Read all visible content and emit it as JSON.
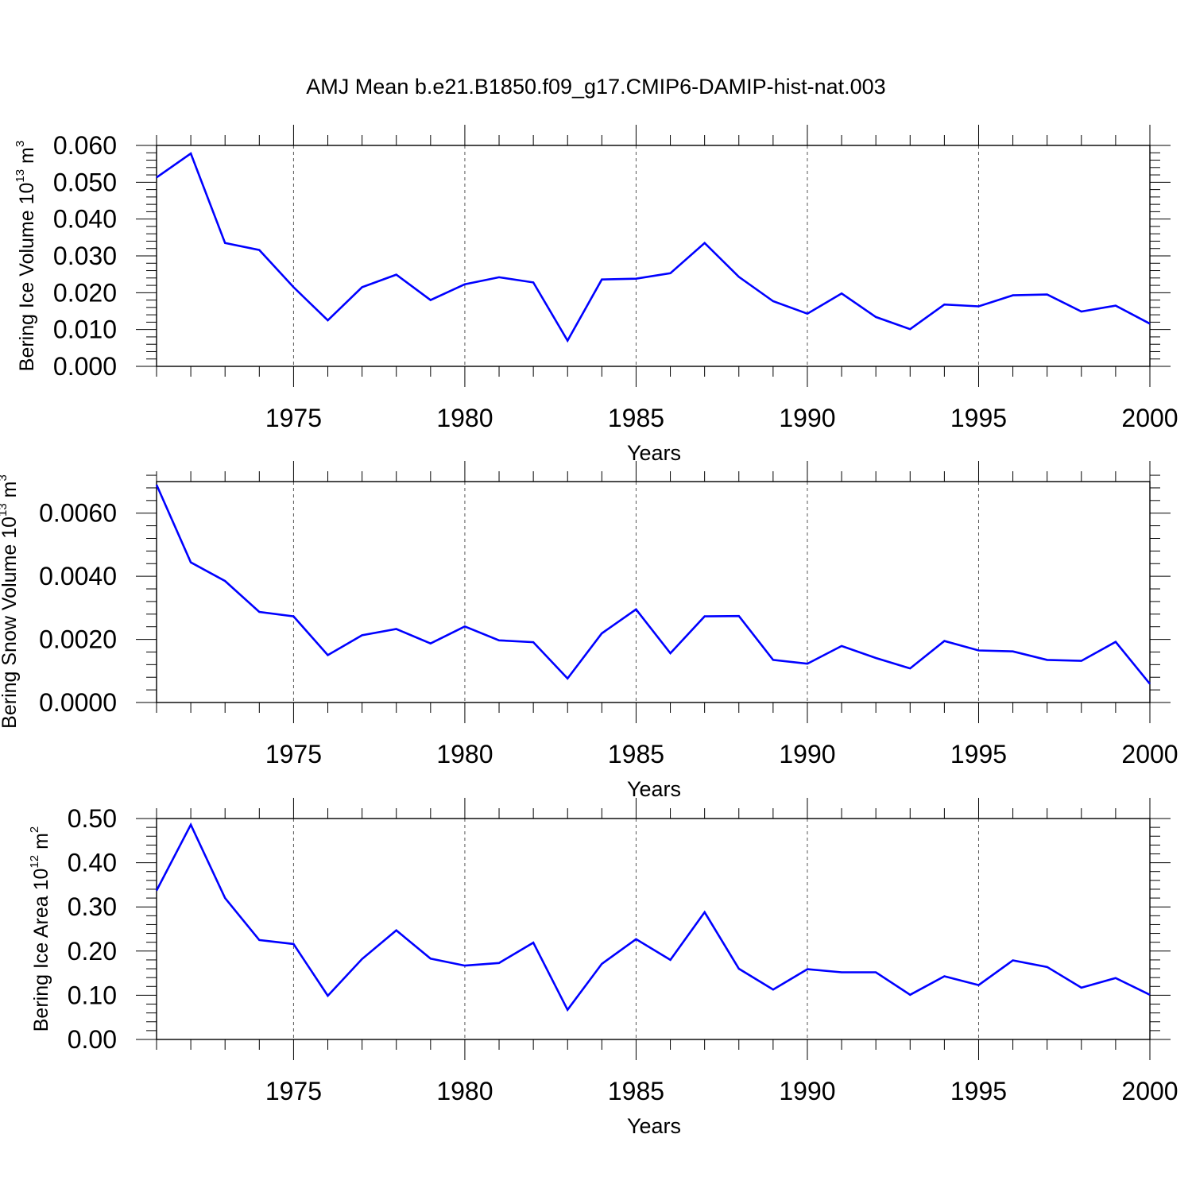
{
  "title": "AMJ Mean b.e21.B1850.f09_g17.CMIP6-DAMIP-hist-nat.003",
  "chart_data": [
    {
      "type": "line",
      "ylabel_main": "Bering Ice Volume 10",
      "ylabel_exp": "13",
      "ylabel_unit": " m",
      "ylabel_unit_exp": "3",
      "xlabel": "Years",
      "xlim": [
        1971,
        2000
      ],
      "ylim": [
        0,
        0.06
      ],
      "yticks": [
        0,
        0.01,
        0.02,
        0.03,
        0.04,
        0.05,
        0.06
      ],
      "ytick_labels": [
        "0.000",
        "0.010",
        "0.020",
        "0.030",
        "0.040",
        "0.050",
        "0.060"
      ],
      "xticks": [
        1975,
        1980,
        1985,
        1990,
        1995,
        2000
      ],
      "xtick_labels": [
        "1975",
        "1980",
        "1985",
        "1990",
        "1995",
        "2000"
      ],
      "line_color": "#0000ff",
      "x": [
        1971,
        1972,
        1973,
        1974,
        1975,
        1976,
        1977,
        1978,
        1979,
        1980,
        1981,
        1982,
        1983,
        1984,
        1985,
        1986,
        1987,
        1988,
        1989,
        1990,
        1991,
        1992,
        1993,
        1994,
        1995,
        1996,
        1997,
        1998,
        1999,
        2000
      ],
      "values": [
        0.0513,
        0.0578,
        0.0335,
        0.0316,
        0.0215,
        0.0125,
        0.0215,
        0.0249,
        0.018,
        0.0223,
        0.0242,
        0.0228,
        0.007,
        0.0236,
        0.0238,
        0.0253,
        0.0335,
        0.0243,
        0.0177,
        0.0143,
        0.0198,
        0.0134,
        0.0101,
        0.0168,
        0.0163,
        0.0193,
        0.0195,
        0.0149,
        0.0165,
        0.0116
      ]
    },
    {
      "type": "line",
      "ylabel_main": "Bering Snow Volume 10",
      "ylabel_exp": "13",
      "ylabel_unit": " m",
      "ylabel_unit_exp": "3",
      "xlabel": "Years",
      "xlim": [
        1971,
        2000
      ],
      "ylim": [
        0,
        0.007
      ],
      "yticks": [
        0,
        0.002,
        0.004,
        0.006
      ],
      "ytick_labels": [
        "0.0000",
        "0.0020",
        "0.0040",
        "0.0060"
      ],
      "xticks": [
        1975,
        1980,
        1985,
        1990,
        1995,
        2000
      ],
      "xtick_labels": [
        "1975",
        "1980",
        "1985",
        "1990",
        "1995",
        "2000"
      ],
      "line_color": "#0000ff",
      "x": [
        1971,
        1972,
        1973,
        1974,
        1975,
        1976,
        1977,
        1978,
        1979,
        1980,
        1981,
        1982,
        1983,
        1984,
        1985,
        1986,
        1987,
        1988,
        1989,
        1990,
        1991,
        1992,
        1993,
        1994,
        1995,
        1996,
        1997,
        1998,
        1999,
        2000
      ],
      "values": [
        0.0069,
        0.00444,
        0.00385,
        0.00287,
        0.00273,
        0.0015,
        0.00213,
        0.00233,
        0.00187,
        0.00241,
        0.00197,
        0.00191,
        0.00076,
        0.00219,
        0.00295,
        0.00156,
        0.00273,
        0.00274,
        0.00135,
        0.00123,
        0.00179,
        0.00141,
        0.00108,
        0.00195,
        0.00165,
        0.00162,
        0.00135,
        0.00132,
        0.00192,
        0.00059
      ]
    },
    {
      "type": "line",
      "ylabel_main": "Bering Ice Area 10",
      "ylabel_exp": "12",
      "ylabel_unit": " m",
      "ylabel_unit_exp": "2",
      "xlabel": "Years",
      "xlim": [
        1971,
        2000
      ],
      "ylim": [
        0,
        0.5
      ],
      "yticks": [
        0,
        0.1,
        0.2,
        0.3,
        0.4,
        0.5
      ],
      "ytick_labels": [
        "0.00",
        "0.10",
        "0.20",
        "0.30",
        "0.40",
        "0.50"
      ],
      "xticks": [
        1975,
        1980,
        1985,
        1990,
        1995,
        2000
      ],
      "xtick_labels": [
        "1975",
        "1980",
        "1985",
        "1990",
        "1995",
        "2000"
      ],
      "line_color": "#0000ff",
      "x": [
        1971,
        1972,
        1973,
        1974,
        1975,
        1976,
        1977,
        1978,
        1979,
        1980,
        1981,
        1982,
        1983,
        1984,
        1985,
        1986,
        1987,
        1988,
        1989,
        1990,
        1991,
        1992,
        1993,
        1994,
        1995,
        1996,
        1997,
        1998,
        1999,
        2000
      ],
      "values": [
        0.337,
        0.486,
        0.32,
        0.225,
        0.216,
        0.099,
        0.182,
        0.247,
        0.183,
        0.167,
        0.173,
        0.219,
        0.067,
        0.171,
        0.227,
        0.18,
        0.288,
        0.16,
        0.113,
        0.159,
        0.152,
        0.152,
        0.101,
        0.143,
        0.123,
        0.179,
        0.164,
        0.117,
        0.139,
        0.101
      ]
    }
  ]
}
